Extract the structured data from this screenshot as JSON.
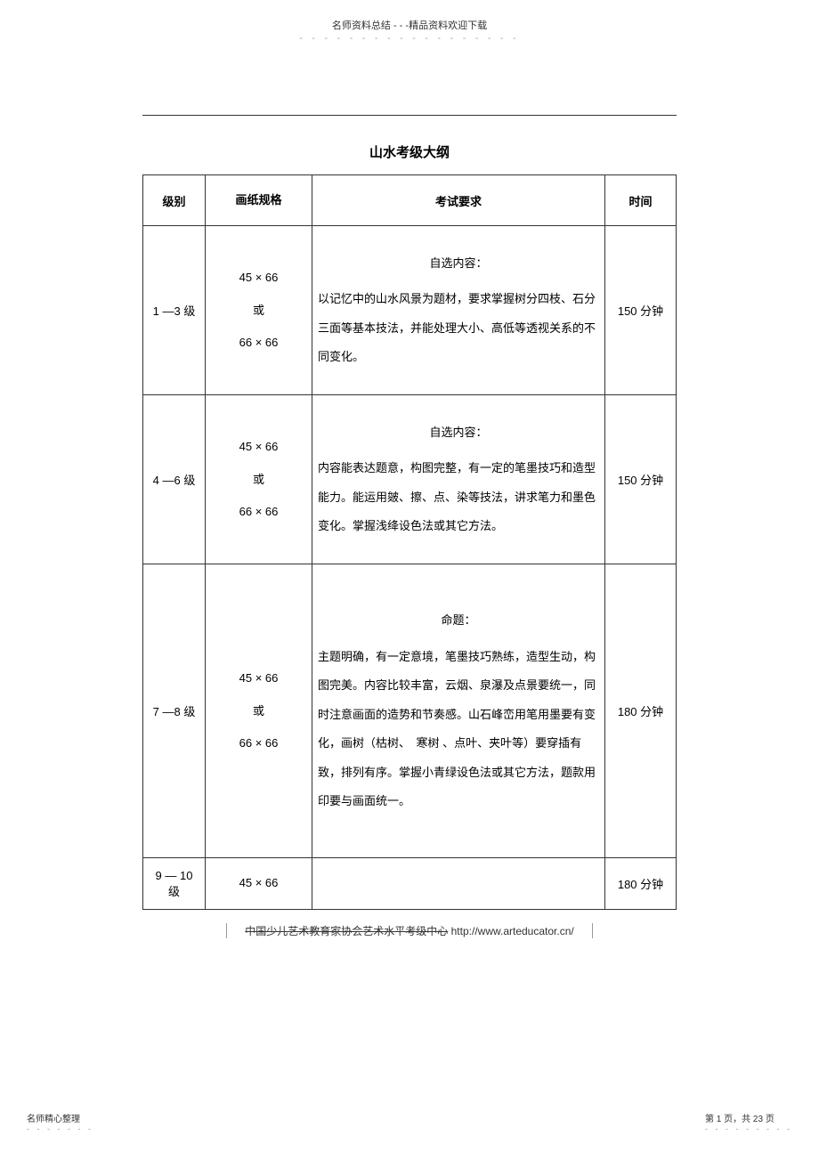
{
  "header": {
    "text": "名师资料总结 - - -精品资料欢迎下载",
    "dots": "- - - - - - - - - - - - - - - - - -"
  },
  "title": "山水考级大纲",
  "columns": {
    "level": "级别",
    "size": "画纸规格",
    "req": "考试要求",
    "time": "时间"
  },
  "rows": [
    {
      "level": "1 —3 级",
      "size_line1": "45 × 66",
      "size_line2": "或",
      "size_line3": "66 × 66",
      "req_heading": "自选内容：",
      "req_body": "以记忆中的山水风景为题材，要求掌握树分四枝、石分三面等基本技法，并能处理大小、高低等透视关系的不同变化。",
      "time": "150 分钟"
    },
    {
      "level": "4 —6 级",
      "size_line1": "45 × 66",
      "size_line2": "或",
      "size_line3": "66 × 66",
      "req_heading": "自选内容：",
      "req_body": "内容能表达题意，构图完整，有一定的笔墨技巧和造型能力。能运用皴、擦、点、染等技法，讲求笔力和墨色变化。掌握浅绛设色法或其它方法。",
      "time": "150 分钟"
    },
    {
      "level": "7 —8 级",
      "size_line1": "45 × 66",
      "size_line2": "或",
      "size_line3": "66 × 66",
      "req_heading": "命题：",
      "req_body": "主题明确，有一定意境，笔墨技巧熟练，造型生动，构图完美。内容比较丰富，云烟、泉瀑及点景要统一，同时注意画面的造势和节奏感。山石峰峦用笔用墨要有变化，画树（枯树、　寒树 、点叶、夹叶等）要穿插有致，排列有序。掌握小青绿设色法或其它方法，题款用印要与画面统一。",
      "time": "180 分钟"
    },
    {
      "level": "9 — 10级",
      "size_line1": "45 × 66",
      "size_line2": "",
      "size_line3": "",
      "req_heading": "",
      "req_body": "",
      "time": "180 分钟"
    }
  ],
  "footer_link_prefix": "中国少儿艺术教育家协会艺术水平考级中心",
  "footer_link_url": " http://www.arteducator.cn/",
  "bottom_left": {
    "text": "名师精心整理",
    "dots": "- - - - - - -"
  },
  "bottom_right": {
    "text": "第 1 页，共 23 页",
    "dots": "- - - - - - - - -"
  }
}
